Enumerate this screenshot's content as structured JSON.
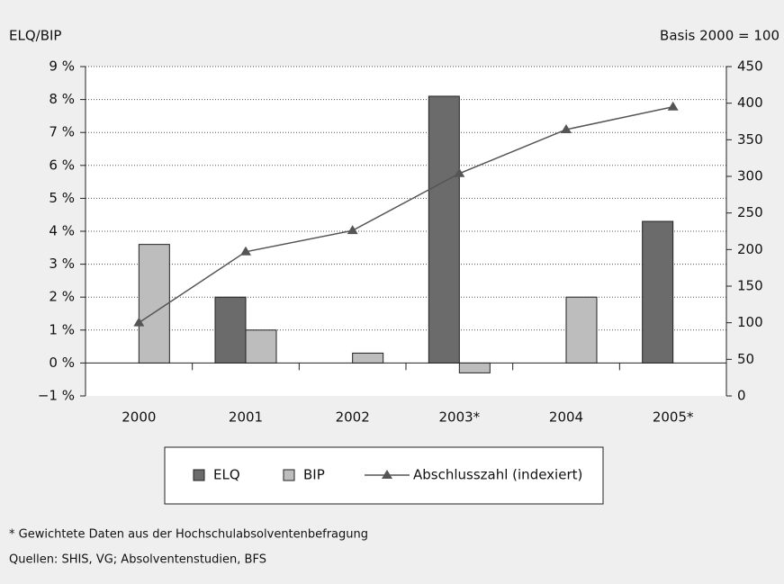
{
  "chart_data": {
    "type": "bar",
    "y_label": "ELQ/BIP",
    "y2_label": "Basis 2000 = 100",
    "categories": [
      "2000",
      "2001",
      "2002",
      "2003*",
      "2004",
      "2005*"
    ],
    "series": [
      {
        "name": "ELQ",
        "color": "#6b6b6b",
        "values": [
          null,
          2.0,
          null,
          8.1,
          null,
          4.3
        ]
      },
      {
        "name": "BIP",
        "color": "#bdbdbd",
        "values": [
          3.6,
          1.0,
          0.3,
          -0.3,
          2.0,
          null
        ]
      },
      {
        "name": "Abschlusszahl (indexiert)",
        "type": "line",
        "axis": "y2",
        "color": "#555555",
        "values": [
          100,
          197,
          226,
          304,
          364,
          395
        ]
      }
    ],
    "ylim": [
      -1,
      9
    ],
    "yticks": [
      {
        "value": -1,
        "label": "−1 %"
      },
      {
        "value": 0,
        "label": "0 %"
      },
      {
        "value": 1,
        "label": "1 %"
      },
      {
        "value": 2,
        "label": "2 %"
      },
      {
        "value": 3,
        "label": "3 %"
      },
      {
        "value": 4,
        "label": "4 %"
      },
      {
        "value": 5,
        "label": "5 %"
      },
      {
        "value": 6,
        "label": "6 %"
      },
      {
        "value": 7,
        "label": "7 %"
      },
      {
        "value": 8,
        "label": "8 %"
      },
      {
        "value": 9,
        "label": "9 %"
      }
    ],
    "y2lim": [
      0,
      450
    ],
    "y2ticks": [
      0,
      50,
      100,
      150,
      200,
      250,
      300,
      350,
      400,
      450
    ],
    "grid": true,
    "notes": [
      "* Gewichtete Daten aus der Hochschulabsolventenbefragung",
      "Quellen: SHIS, VG; Absolventenstudien, BFS"
    ]
  }
}
